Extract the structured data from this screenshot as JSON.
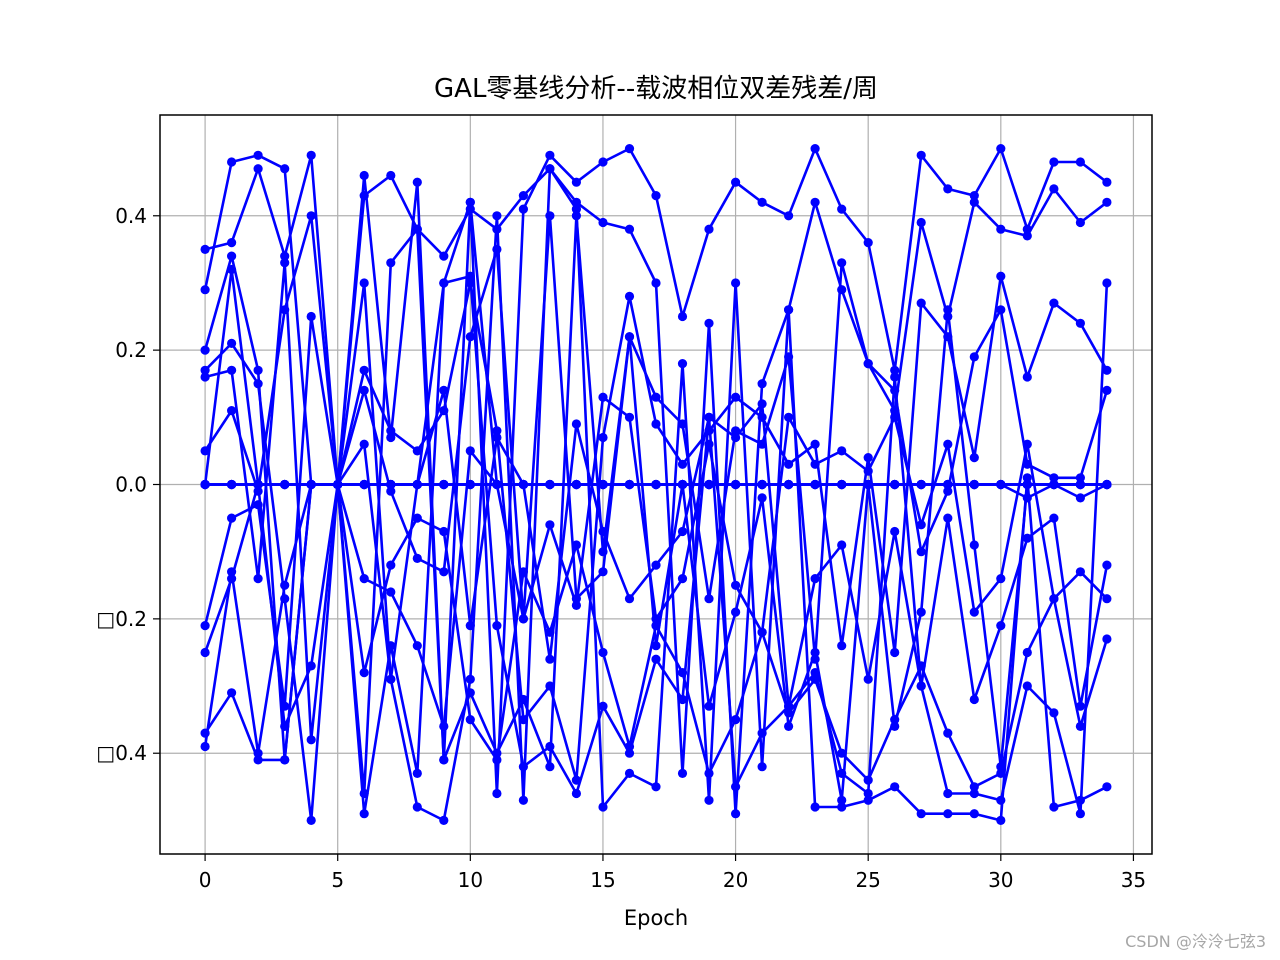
{
  "chart_data": {
    "type": "line",
    "title": "GAL零基线分析--载波相位双差残差/周",
    "xlabel": "Epoch",
    "ylabel": "",
    "xlim": [
      -1.7,
      35.7
    ],
    "ylim": [
      -0.55,
      0.55
    ],
    "x_ticks": [
      0,
      5,
      10,
      15,
      20,
      25,
      30,
      35
    ],
    "x_tick_labels": [
      "0",
      "5",
      "10",
      "15",
      "20",
      "25",
      "30",
      "35"
    ],
    "y_ticks": [
      -0.4,
      -0.2,
      0.0,
      0.2,
      0.4
    ],
    "y_tick_labels": [
      "□0.4",
      "□0.2",
      "0.0",
      "0.2",
      "0.4"
    ],
    "grid": true,
    "legend": "none",
    "line_color": "#0000ff",
    "x": [
      0,
      1,
      2,
      3,
      4,
      5,
      6,
      7,
      8,
      9,
      10,
      11,
      12,
      13,
      14,
      15,
      16,
      17,
      18,
      19,
      20,
      21,
      22,
      23,
      24,
      25,
      26,
      27,
      28,
      29,
      30,
      31,
      32,
      33,
      34
    ],
    "series": [
      {
        "values": [
          0.35,
          0.36,
          0.47,
          0.34,
          0.49,
          0.0,
          0.46,
          0.07,
          0.45,
          -0.41,
          0.42,
          -0.46,
          0.41,
          0.49,
          0.45,
          0.48,
          0.5,
          0.43,
          0.25,
          0.38,
          0.45,
          0.42,
          0.4,
          0.5,
          0.41,
          0.36,
          0.17,
          0.49,
          0.44,
          0.43,
          0.5,
          0.38,
          0.48,
          0.48,
          0.45
        ]
      },
      {
        "values": [
          0.29,
          0.48,
          0.49,
          0.47,
          0.0,
          0.0,
          0.43,
          0.46,
          0.38,
          0.34,
          0.41,
          0.38,
          0.43,
          0.47,
          0.42,
          0.39,
          0.38,
          0.3,
          -0.43,
          0.24,
          -0.49,
          0.15,
          0.26,
          0.42,
          0.29,
          0.18,
          0.11,
          0.39,
          0.25,
          0.42,
          0.38,
          0.37,
          0.44,
          0.39,
          0.42
        ]
      },
      {
        "values": [
          0.2,
          0.34,
          0.17,
          -0.41,
          0.0,
          0.0,
          0.3,
          -0.29,
          -0.48,
          -0.5,
          -0.29,
          0.4,
          -0.47,
          0.47,
          0.41,
          -0.48,
          -0.43,
          -0.45,
          0.18,
          -0.47,
          0.3,
          -0.42,
          0.26,
          -0.48,
          -0.48,
          -0.47,
          -0.45,
          -0.49,
          -0.49,
          -0.49,
          -0.5,
          0.01,
          -0.48,
          -0.47,
          -0.45
        ]
      },
      {
        "values": [
          0.17,
          0.21,
          0.15,
          -0.17,
          -0.5,
          0.0,
          -0.49,
          -0.24,
          -0.43,
          0.3,
          0.31,
          -0.21,
          -0.42,
          -0.39,
          -0.46,
          -0.33,
          -0.4,
          -0.26,
          -0.32,
          0.1,
          -0.45,
          -0.37,
          -0.33,
          -0.28,
          -0.43,
          -0.46,
          0.16,
          -0.3,
          -0.46,
          -0.46,
          -0.47,
          -0.3,
          -0.34,
          -0.49,
          0.3
        ]
      },
      {
        "values": [
          0.16,
          0.17,
          -0.14,
          0.33,
          -0.38,
          0.0,
          0.17,
          0.08,
          0.05,
          0.11,
          0.3,
          0.08,
          -0.35,
          -0.3,
          -0.44,
          0.07,
          0.28,
          0.09,
          0.03,
          0.08,
          0.13,
          0.1,
          0.03,
          0.06,
          -0.24,
          0.04,
          -0.25,
          0.27,
          0.22,
          0.04,
          0.31,
          0.16,
          0.27,
          0.24,
          0.17
        ]
      },
      {
        "values": [
          0.05,
          0.11,
          -0.01,
          0.26,
          0.4,
          0.0,
          0.14,
          -0.01,
          -0.11,
          -0.13,
          0.22,
          0.35,
          -0.2,
          0.4,
          -0.17,
          -0.13,
          0.22,
          0.13,
          0.09,
          -0.17,
          0.08,
          0.06,
          0.19,
          -0.26,
          0.33,
          0.18,
          0.14,
          -0.1,
          -0.01,
          0.19,
          0.26,
          0.03,
          0.01,
          0.01,
          0.14
        ]
      },
      {
        "values": [
          -0.21,
          -0.05,
          -0.03,
          -0.33,
          0.25,
          0.0,
          0.06,
          -0.29,
          0.0,
          0.14,
          -0.21,
          0.07,
          0.0,
          -0.26,
          0.09,
          -0.07,
          -0.17,
          -0.12,
          -0.07,
          0.1,
          0.07,
          0.12,
          -0.33,
          -0.14,
          -0.09,
          -0.29,
          -0.07,
          -0.3,
          -0.05,
          -0.32,
          -0.21,
          -0.08,
          -0.05,
          -0.33,
          -0.12
        ]
      },
      {
        "values": [
          -0.25,
          -0.14,
          0.0,
          -0.36,
          -0.27,
          0.0,
          -0.14,
          -0.16,
          -0.24,
          -0.36,
          0.05,
          0.0,
          -0.2,
          -0.06,
          -0.18,
          0.13,
          0.1,
          -0.2,
          -0.14,
          0.06,
          -0.15,
          -0.22,
          0.1,
          0.03,
          0.05,
          0.02,
          0.1,
          -0.06,
          0.06,
          -0.19,
          -0.14,
          0.06,
          -0.17,
          -0.13,
          -0.17
        ]
      },
      {
        "values": [
          -0.37,
          -0.31,
          -0.41,
          -0.41,
          0.0,
          0.0,
          -0.28,
          -0.12,
          -0.05,
          -0.07,
          -0.35,
          -0.41,
          -0.13,
          -0.22,
          -0.09,
          -0.25,
          -0.39,
          -0.21,
          -0.28,
          -0.43,
          -0.35,
          -0.22,
          -0.34,
          -0.29,
          -0.4,
          -0.44,
          -0.35,
          -0.27,
          -0.37,
          -0.45,
          -0.43,
          -0.25,
          -0.17,
          -0.36,
          -0.23
        ]
      },
      {
        "values": [
          -0.39,
          -0.13,
          -0.4,
          -0.15,
          0.0,
          0.0,
          -0.46,
          0.33,
          0.38,
          -0.41,
          -0.31,
          -0.4,
          -0.32,
          -0.42,
          0.4,
          -0.1,
          0.22,
          -0.24,
          0.0,
          -0.33,
          -0.19,
          -0.02,
          -0.36,
          -0.25,
          -0.47,
          0.0,
          -0.36,
          -0.19,
          0.26,
          -0.09,
          -0.42,
          0.0,
          0.0,
          0.0,
          0.0
        ]
      },
      {
        "values": [
          0.0,
          0.0,
          0.0,
          0.0,
          0.0,
          0.0,
          0.0,
          0.0,
          0.0,
          0.0,
          0.0,
          0.0,
          0.0,
          0.0,
          0.0,
          0.0,
          0.0,
          0.0,
          0.0,
          0.0,
          0.0,
          0.0,
          0.0,
          0.0,
          0.0,
          0.0,
          0.0,
          0.0,
          0.0,
          0.0,
          0.0,
          0.0,
          0.0,
          0.0,
          0.0
        ]
      },
      {
        "values": [
          0.0,
          0.0,
          0.0,
          0.0,
          0.0,
          0.0,
          0.0,
          0.0,
          0.0,
          0.0,
          0.0,
          0.0,
          0.0,
          0.0,
          0.0,
          0.0,
          0.0,
          0.0,
          0.0,
          0.0,
          0.0,
          0.0,
          0.0,
          0.0,
          0.0,
          0.0,
          0.0,
          0.0,
          0.0,
          0.0,
          0.0,
          -0.02,
          0.0,
          -0.02,
          0.0
        ]
      },
      {
        "values": [
          0.0,
          0.0,
          0.0,
          0.0,
          0.0,
          0.0,
          0.0,
          0.0,
          0.0,
          0.0,
          0.0,
          0.0,
          0.0,
          0.0,
          0.0,
          0.0,
          0.0,
          0.0,
          0.0,
          0.0,
          0.0,
          0.0,
          0.0,
          0.0,
          0.0,
          0.0,
          0.0,
          0.0,
          0.0,
          0.0,
          0.0,
          0.0,
          0.0,
          0.0,
          0.0
        ]
      },
      {
        "values": [
          0.0,
          0.32,
          0.0,
          0.0,
          0.0,
          0.0,
          0.0,
          0.0,
          0.0,
          0.3,
          0.42,
          0.0,
          0.0,
          0.0,
          0.0,
          0.0,
          0.0,
          0.0,
          0.0,
          0.0,
          0.0,
          0.0,
          0.0,
          0.0,
          0.0,
          0.0,
          0.0,
          0.0,
          0.0,
          0.0,
          0.0,
          0.0,
          0.0,
          0.0,
          0.0
        ]
      },
      {
        "values": [
          0.0,
          0.0,
          0.0,
          0.0,
          0.0,
          0.0,
          0.0,
          0.0,
          0.0,
          0.0,
          0.0,
          0.0,
          0.0,
          0.0,
          0.0,
          0.0,
          0.0,
          0.0,
          0.0,
          0.0,
          0.0,
          0.0,
          0.0,
          0.0,
          0.0,
          0.0,
          0.0,
          0.0,
          0.0,
          0.0,
          0.0,
          0.0,
          0.0,
          0.0,
          0.0
        ]
      },
      {
        "values": [
          0.0,
          0.0,
          0.0,
          0.0,
          0.0,
          0.0,
          0.0,
          0.0,
          0.0,
          0.0,
          0.0,
          0.0,
          0.0,
          0.0,
          0.0,
          0.0,
          0.0,
          0.0,
          0.0,
          0.0,
          0.0,
          0.0,
          0.0,
          0.0,
          0.0,
          0.0,
          0.0,
          0.0,
          0.0,
          0.0,
          0.0,
          0.0,
          0.0,
          0.0,
          0.0
        ]
      }
    ]
  },
  "watermark": "CSDN @泠泠七弦3"
}
